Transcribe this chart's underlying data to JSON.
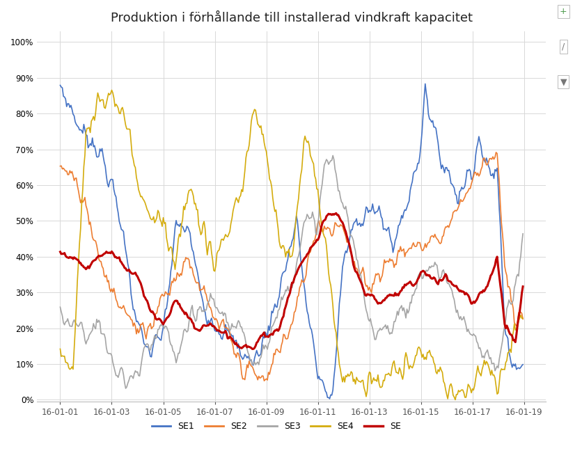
{
  "title": "Produktion i förhållande till installerad vindkraft kapacitet",
  "title_fontsize": 13,
  "bg_color": "#ffffff",
  "plot_bg_color": "#ffffff",
  "grid_color": "#d8d8d8",
  "yticks": [
    0.0,
    0.1,
    0.2,
    0.3,
    0.4,
    0.5,
    0.6,
    0.7,
    0.8,
    0.9,
    1.0
  ],
  "ytick_labels": [
    "0%",
    "10%",
    "20%",
    "30%",
    "40%",
    "50%",
    "60%",
    "70%",
    "80%",
    "90%",
    "100%"
  ],
  "x_date_labels": [
    "16-01-01",
    "16-01-03",
    "16-01-05",
    "16-01-07",
    "16-01-09",
    "16-01-11",
    "16-01-13",
    "16-01-15",
    "16-01-17",
    "16-01-19"
  ],
  "colors": {
    "SE1": "#4472C4",
    "SE2": "#ED7D31",
    "SE3": "#A5A5A5",
    "SE4": "#D4AC0D",
    "SE": "#C00000"
  },
  "linewidths": {
    "SE1": 1.2,
    "SE2": 1.2,
    "SE3": 1.2,
    "SE4": 1.2,
    "SE": 2.2
  },
  "legend_labels": [
    "SE1",
    "SE2",
    "SE3",
    "SE4",
    "SE"
  ],
  "n_points": 432
}
